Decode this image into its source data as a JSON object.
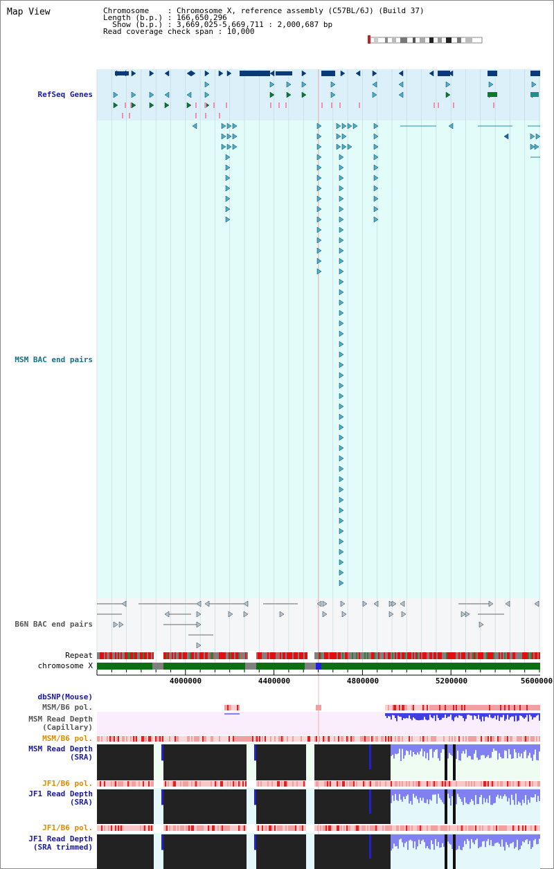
{
  "page": {
    "title": "Map View"
  },
  "info": {
    "chromosome": "Chromosome    : Chromosome X, reference assembly (C57BL/6J) (Build 37)",
    "length": "Length (b.p.) : 166,650,296",
    "show": "  Show (b.p.) : 3,669,025-5,669,711 : 2,000,687 bp",
    "span": "Read coverage check span : 10,000"
  },
  "tracks": {
    "refseq": "RefSeq Genes",
    "msm_bac": "MSM BAC end pairs",
    "b6n_bac": "B6N BAC end pairs",
    "repeat": "Repeat",
    "chromosome": "chromosome X",
    "dbsnp": "dbSNP(Mouse)",
    "msm_pol": "MSM/B6 pol.",
    "msm_depth_cap_1": "MSM Read Depth",
    "msm_depth_cap_2": "(Capillary)",
    "msm_pol2": "MSM/B6 pol.",
    "msm_sra_1": "MSM Read Depth",
    "msm_sra_2": "(SRA)",
    "jf1_pol": "JF1/B6 pol.",
    "jf1_sra_1": "JF1 Read Depth",
    "jf1_sra_2": "(SRA)",
    "jf1_pol2": "JF1/B6 pol.",
    "jf1_trim_1": "JF1 Read Depth",
    "jf1_trim_2": "(SRA trimmed)"
  },
  "axis": {
    "ticks": [
      "4000000",
      "4400000",
      "4800000",
      "5200000",
      "5600000"
    ]
  },
  "colors": {
    "refseq_bg": "#dcf0fa",
    "msm_bg": "#e2fcfa",
    "b6n_bg": "#f5f6f8",
    "gene_dark": "#0a3a7a",
    "gene_teal": "#2a9aaa",
    "gene_green": "#0a7a2a",
    "chrom_green": "#0a7010",
    "depth_black": "#222222",
    "depth_blue": "#8080f0"
  }
}
